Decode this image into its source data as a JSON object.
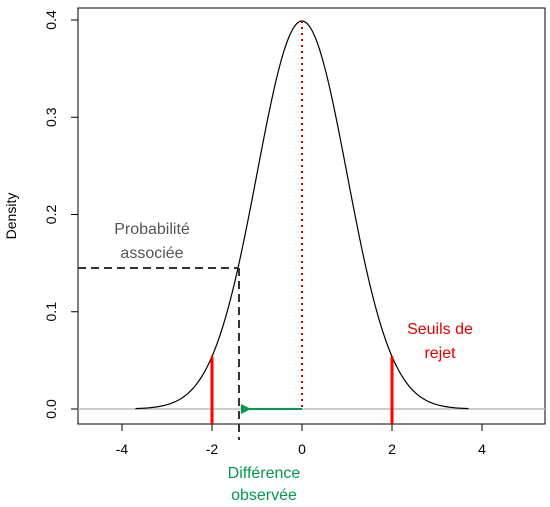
{
  "chart_data": {
    "type": "line",
    "title": "",
    "xlabel": "",
    "ylabel": "Density",
    "xlim": [
      -5,
      5
    ],
    "ylim": [
      0,
      0.4
    ],
    "x_ticks": [
      -4,
      -2,
      0,
      2,
      4
    ],
    "x_tick_labels": [
      "-4",
      "-2",
      "0",
      "2",
      "4"
    ],
    "y_ticks": [
      0,
      0.1,
      0.2,
      0.3,
      0.4
    ],
    "y_tick_labels": [
      "0.0",
      "0.1",
      "0.2",
      "0.3",
      "0.4"
    ],
    "grid": false,
    "series": [
      {
        "curve": "standard-normal-density",
        "x_range": [
          -3.7,
          3.7
        ],
        "color": "#000000"
      }
    ],
    "rejection_thresholds": {
      "x": [
        -2,
        2
      ],
      "color": "#ff0000"
    },
    "mean_line": {
      "x": 0,
      "style": "dotted",
      "color": "#cc0000"
    },
    "observed_difference": {
      "x": -1.4,
      "density": 0.145,
      "color": "#00994d"
    },
    "associated_probability": {
      "y": 0.145,
      "style": "dashed",
      "color": "#333333"
    },
    "annotations": {
      "probability_line1": "Probabilité",
      "probability_line2": "associée",
      "thresholds_line1": "Seuils de",
      "thresholds_line2": "rejet",
      "observed_line1": "Différence",
      "observed_line2": "observée"
    },
    "colors": {
      "probability_text": "#555555",
      "thresholds_text": "#e00000",
      "observed_text": "#00994d",
      "baseline": "#bbbbbb"
    }
  }
}
